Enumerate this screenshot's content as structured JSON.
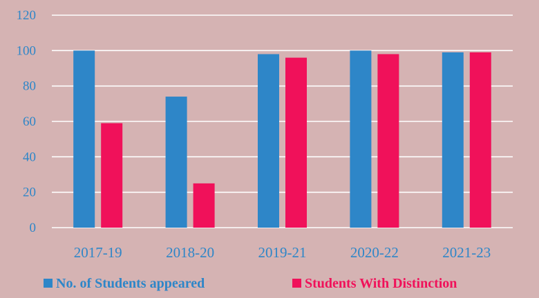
{
  "chart_data": {
    "type": "bar",
    "title": "",
    "xlabel": "",
    "ylabel": "",
    "categories": [
      "2017-19",
      "2018-20",
      "2019-21",
      "2020-22",
      "2021-23"
    ],
    "series": [
      {
        "name": "No. of Students appeared",
        "color": "#2e86c8",
        "values": [
          100,
          74,
          98,
          100,
          99
        ]
      },
      {
        "name": "Students With Distinction",
        "color": "#f0115a",
        "values": [
          59,
          25,
          96,
          98,
          99
        ]
      }
    ],
    "ylim": [
      0,
      120
    ],
    "yticks": [
      0,
      20,
      40,
      60,
      80,
      100,
      120
    ],
    "grid": true,
    "legend_position": "bottom"
  }
}
